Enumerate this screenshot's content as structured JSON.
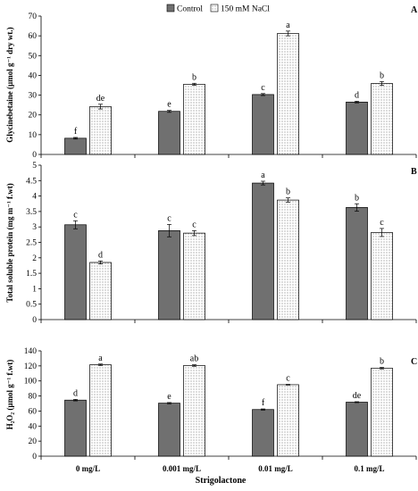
{
  "legend": {
    "control": "Control",
    "salt": "150 mM NaCl"
  },
  "colors": {
    "control": "#707070",
    "salt_background": "#ffffff",
    "salt_dots": "#555555",
    "axis": "#000000"
  },
  "chart_data": [
    {
      "panel": "A",
      "type": "bar",
      "ylabel": "Glycinebetaine (µmol g⁻¹ dry wt.)",
      "ylim": [
        0,
        70
      ],
      "yticks": [
        0,
        10,
        20,
        30,
        40,
        50,
        60,
        70
      ],
      "categories": [
        "0 mg/L",
        "0.001 mg/L",
        "0.01 mg/L",
        "0.1 mg/L"
      ],
      "series": [
        {
          "name": "Control",
          "values": [
            8.2,
            21.8,
            30.3,
            26.5
          ],
          "errors": [
            0.4,
            0.5,
            0.5,
            0.4
          ],
          "letters": [
            "f",
            "e",
            "c",
            "d"
          ]
        },
        {
          "name": "150 mM NaCl",
          "values": [
            24.2,
            35.5,
            61.2,
            35.9
          ],
          "errors": [
            1.2,
            0.5,
            1.2,
            1.0
          ],
          "letters": [
            "de",
            "b",
            "a",
            "b"
          ]
        }
      ]
    },
    {
      "panel": "B",
      "type": "bar",
      "ylabel": "Total soluble protein (mg m⁻¹ f.wt)",
      "ylim": [
        0,
        5
      ],
      "yticks": [
        0,
        0.5,
        1,
        1.5,
        2,
        2.5,
        3,
        3.5,
        4,
        4.5,
        5
      ],
      "categories": [
        "0 mg/L",
        "0.001 mg/L",
        "0.01 mg/L",
        "0.1 mg/L"
      ],
      "series": [
        {
          "name": "Control",
          "values": [
            3.07,
            2.88,
            4.42,
            3.63
          ],
          "errors": [
            0.13,
            0.2,
            0.06,
            0.12
          ],
          "letters": [
            "c",
            "c",
            "a",
            "b"
          ]
        },
        {
          "name": "150 mM NaCl",
          "values": [
            1.85,
            2.8,
            3.87,
            2.82
          ],
          "errors": [
            0.05,
            0.08,
            0.07,
            0.13
          ],
          "letters": [
            "d",
            "c",
            "b",
            "c"
          ]
        }
      ]
    },
    {
      "panel": "C",
      "type": "bar",
      "ylabel": "H₂O₂ (µmol g⁻¹ f.wt)",
      "ylim": [
        0,
        140
      ],
      "yticks": [
        0,
        20,
        40,
        60,
        80,
        100,
        120,
        140
      ],
      "categories": [
        "0 mg/L",
        "0.001 mg/L",
        "0.01 mg/L",
        "0.1 mg/L"
      ],
      "xlabel": "Strigolactone",
      "series": [
        {
          "name": "Control",
          "values": [
            74.5,
            70.5,
            62.0,
            71.8
          ],
          "errors": [
            1.0,
            0.8,
            0.8,
            0.6
          ],
          "letters": [
            "d",
            "e",
            "f",
            "de"
          ]
        },
        {
          "name": "150 mM NaCl",
          "values": [
            121.5,
            120.5,
            95.0,
            117.0
          ],
          "errors": [
            1.0,
            1.0,
            0.5,
            1.0
          ],
          "letters": [
            "a",
            "ab",
            "c",
            "b"
          ]
        }
      ]
    }
  ]
}
